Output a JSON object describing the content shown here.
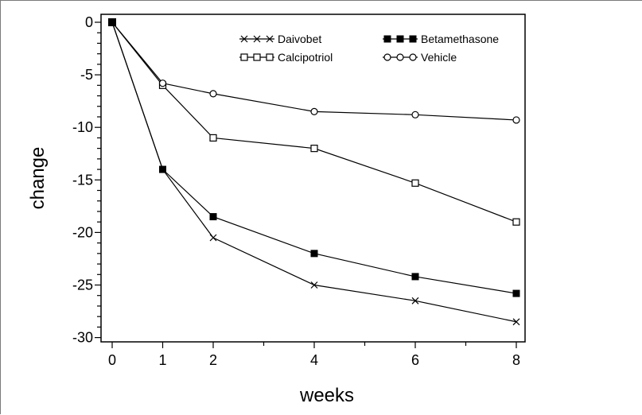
{
  "chart_data": {
    "type": "line",
    "title": "",
    "xlabel": "weeks",
    "ylabel": "change",
    "x": [
      0,
      1,
      2,
      4,
      6,
      8
    ],
    "xlim": [
      0,
      8.6
    ],
    "ylim": [
      -30.3,
      0.8
    ],
    "xticks": [
      "0",
      "1",
      "2",
      "4",
      "6",
      "8"
    ],
    "yticks": [
      "0",
      "-5",
      "-10",
      "-15",
      "-20",
      "-25",
      "-30"
    ],
    "grid": false,
    "legend_position": "top-right",
    "series": [
      {
        "name": "Daivobet",
        "marker": "x",
        "values": [
          0,
          -14,
          -20.5,
          -25,
          -26.5,
          -28.5
        ]
      },
      {
        "name": "Betamethasone",
        "marker": "filled-square",
        "values": [
          0,
          -14,
          -18.5,
          -22,
          -24.2,
          -25.8
        ]
      },
      {
        "name": "Calcipotriol",
        "marker": "open-square",
        "values": [
          0,
          -6,
          -11,
          -12,
          -15.3,
          -19
        ]
      },
      {
        "name": "Vehicle",
        "marker": "open-circle",
        "values": [
          0,
          -5.8,
          -6.8,
          -8.5,
          -8.8,
          -9.3
        ]
      }
    ]
  }
}
